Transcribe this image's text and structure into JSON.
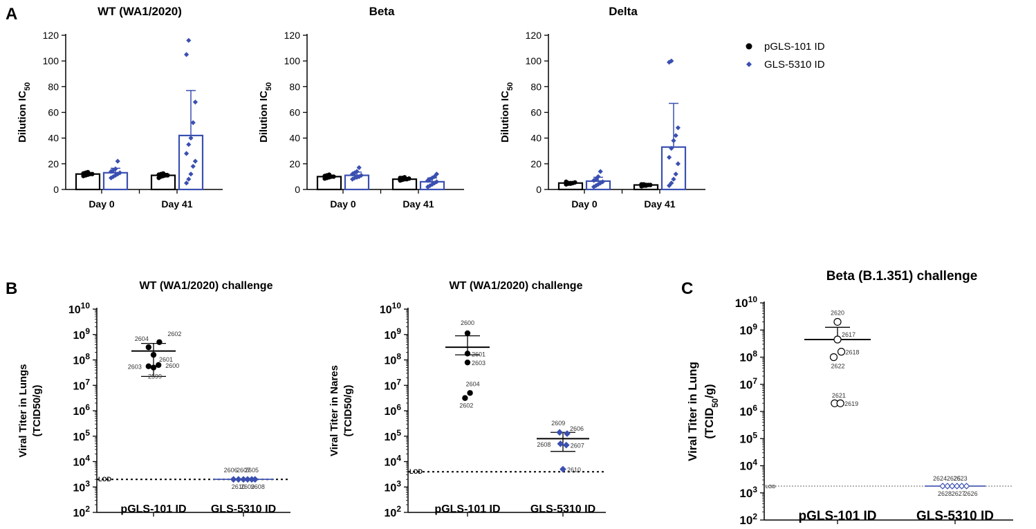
{
  "panel_letters": {
    "a": "A",
    "b": "B",
    "c": "C"
  },
  "legend": {
    "items": [
      {
        "label": "pGLS-101 ID",
        "color": "#000000",
        "marker": "circle"
      },
      {
        "label": "GLS-5310 ID",
        "color": "#3a4fb0",
        "marker": "diamond"
      }
    ]
  },
  "colors": {
    "black": "#000000",
    "blue": "#3a4fb0",
    "gray": "#555555"
  },
  "chart_data": [
    {
      "id": "A1",
      "type": "bar",
      "title": "WT (WA1/2020)",
      "ylabel": "Dilution IC",
      "ylabel_sub": "50",
      "ylim": [
        0,
        120
      ],
      "yticks": [
        0,
        20,
        40,
        60,
        80,
        100,
        120
      ],
      "categories": [
        "Day 0",
        "Day 41"
      ],
      "series": [
        {
          "name": "pGLS-101 ID",
          "values": [
            12,
            11
          ],
          "sd": [
            1,
            1.5
          ],
          "points": [
            [
              10.5,
              11,
              11.5,
              12,
              12,
              12.5,
              13,
              13.5
            ],
            [
              9,
              10,
              10.5,
              11,
              11,
              11.5,
              12,
              12.5
            ]
          ]
        },
        {
          "name": "GLS-5310 ID",
          "values": [
            13,
            42
          ],
          "sd": [
            3.5,
            35
          ],
          "points": [
            [
              9,
              10,
              11,
              12,
              13,
              14,
              15,
              16,
              22
            ],
            [
              5,
              8,
              12,
              18,
              22,
              28,
              35,
              40,
              52,
              68,
              105,
              116
            ]
          ]
        }
      ]
    },
    {
      "id": "A2",
      "type": "bar",
      "title": "Beta",
      "ylabel": "Dilution IC",
      "ylabel_sub": "50",
      "ylim": [
        0,
        120
      ],
      "yticks": [
        0,
        20,
        40,
        60,
        80,
        100,
        120
      ],
      "categories": [
        "Day 0",
        "Day 41"
      ],
      "series": [
        {
          "name": "pGLS-101 ID",
          "values": [
            10,
            8
          ],
          "sd": [
            1,
            1
          ],
          "points": [
            [
              8.5,
              9,
              9.5,
              10,
              10,
              10.5,
              11,
              11.5
            ],
            [
              7,
              7.5,
              8,
              8,
              8.5,
              9,
              9,
              9.5
            ]
          ]
        },
        {
          "name": "GLS-5310 ID",
          "values": [
            11,
            6
          ],
          "sd": [
            2.5,
            3
          ],
          "points": [
            [
              8,
              9,
              9.5,
              10,
              11,
              12,
              13,
              14,
              17
            ],
            [
              2,
              3,
              4,
              5,
              6,
              7,
              8,
              9,
              10,
              12
            ]
          ]
        }
      ]
    },
    {
      "id": "A3",
      "type": "bar",
      "title": "Delta",
      "ylabel": "Dilution IC",
      "ylabel_sub": "50",
      "ylim": [
        0,
        120
      ],
      "yticks": [
        0,
        20,
        40,
        60,
        80,
        100,
        120
      ],
      "categories": [
        "Day 0",
        "Day 41"
      ],
      "series": [
        {
          "name": "pGLS-101 ID",
          "values": [
            5,
            3.5
          ],
          "sd": [
            1,
            0.8
          ],
          "points": [
            [
              4,
              4.5,
              5,
              5,
              5.5,
              6,
              5,
              4.5
            ],
            [
              2.5,
              3,
              3,
              3.5,
              3.5,
              4,
              4,
              3.5
            ]
          ]
        },
        {
          "name": "GLS-5310 ID",
          "values": [
            6.5,
            33
          ],
          "sd": [
            3,
            34
          ],
          "points": [
            [
              2,
              3,
              4,
              5,
              6,
              7,
              8,
              10,
              14
            ],
            [
              3,
              5,
              8,
              12,
              20,
              25,
              32,
              38,
              42,
              48,
              99,
              100
            ]
          ]
        }
      ]
    },
    {
      "id": "B1",
      "type": "scatter",
      "title": "WT  (WA1/2020) challenge",
      "ylabel": "Viral Titer in Lungs",
      "ylabel2": "(TCID50/g)",
      "yscale": "log",
      "ylim_exp": [
        2,
        10
      ],
      "categories": [
        "pGLS-101 ID",
        "GLS-5310 ID"
      ],
      "lod": {
        "label": "LOD",
        "exp": 3.3
      },
      "groups": [
        {
          "name": "pGLS-101 ID",
          "mean_exp": 8.35,
          "err_low_exp": 7.35,
          "err_high_exp": 8.65,
          "points": [
            {
              "label": "2604",
              "exp": 8.5,
              "dx": -0.6,
              "lx": -20,
              "ly": -9
            },
            {
              "label": "2602",
              "exp": 8.7,
              "dx": 0.7,
              "lx": 12,
              "ly": -9
            },
            {
              "label": "2601",
              "exp": 8.2,
              "dx": 0.0,
              "lx": 8,
              "ly": 10
            },
            {
              "label": "2603",
              "exp": 7.75,
              "dx": -0.6,
              "lx": -30,
              "ly": 4
            },
            {
              "label": "2600",
              "exp": 7.8,
              "dx": 0.6,
              "lx": 10,
              "ly": 4
            },
            {
              "label": "2599",
              "exp": 7.7,
              "dx": 0.0,
              "lx": -8,
              "ly": 16
            }
          ]
        },
        {
          "name": "GLS-5310 ID",
          "mean_exp": 3.3,
          "err_low_exp": 3.3,
          "err_high_exp": 3.3,
          "points": [
            {
              "label": "2606",
              "exp": 3.3,
              "dx": -1.2,
              "lx": -14,
              "ly": -10
            },
            {
              "label": "2610",
              "exp": 3.3,
              "dx": -0.6,
              "lx": -10,
              "ly": 14
            },
            {
              "label": "2607",
              "exp": 3.3,
              "dx": 0.0,
              "lx": -10,
              "ly": -10
            },
            {
              "label": "2609",
              "exp": 3.3,
              "dx": 0.5,
              "lx": -10,
              "ly": 14
            },
            {
              "label": "2605",
              "exp": 3.3,
              "dx": 1.0,
              "lx": -10,
              "ly": -10
            },
            {
              "label": "2608",
              "exp": 3.3,
              "dx": 1.4,
              "lx": -6,
              "ly": 14
            }
          ]
        }
      ]
    },
    {
      "id": "B2",
      "type": "scatter",
      "title": "WT  (WA1/2020) challenge",
      "ylabel": "Viral Titer in Nares",
      "ylabel2": "(TCID50/g)",
      "yscale": "log",
      "ylim_exp": [
        2,
        10
      ],
      "categories": [
        "pGLS-101 ID",
        "GLS-5310 ID"
      ],
      "lod": {
        "label": "LOD",
        "exp": 3.6
      },
      "groups": [
        {
          "name": "pGLS-101 ID",
          "mean_exp": 8.5,
          "err_low_exp": 8.2,
          "err_high_exp": 8.95,
          "points": [
            {
              "label": "2600",
              "exp": 9.05,
              "dx": 0.0,
              "lx": -10,
              "ly": -12
            },
            {
              "label": "2601",
              "exp": 8.25,
              "dx": 0.0,
              "lx": 6,
              "ly": 4
            },
            {
              "label": "2603",
              "exp": 7.9,
              "dx": 0.0,
              "lx": 6,
              "ly": 4
            },
            {
              "label": "2604",
              "exp": 6.7,
              "dx": 0.3,
              "lx": -6,
              "ly": -10
            },
            {
              "label": "2602",
              "exp": 6.5,
              "dx": -0.3,
              "lx": -8,
              "ly": 14
            }
          ]
        },
        {
          "name": "GLS-5310 ID",
          "mean_exp": 4.9,
          "err_low_exp": 4.4,
          "err_high_exp": 5.15,
          "points": [
            {
              "label": "2609",
              "exp": 5.15,
              "dx": -0.4,
              "lx": -12,
              "ly": -10
            },
            {
              "label": "2606",
              "exp": 5.1,
              "dx": 0.5,
              "lx": 4,
              "ly": -4
            },
            {
              "label": "2608",
              "exp": 4.7,
              "dx": -0.3,
              "lx": -34,
              "ly": 4
            },
            {
              "label": "2607",
              "exp": 4.65,
              "dx": 0.4,
              "lx": 6,
              "ly": 4
            },
            {
              "label": "2610",
              "exp": 3.7,
              "dx": 0.0,
              "lx": 6,
              "ly": 4
            }
          ]
        }
      ]
    },
    {
      "id": "C",
      "type": "scatter",
      "title": "Beta (B.1.351) challenge",
      "ylabel": "Viral Titer in Lung",
      "ylabel2": "(TCID",
      "ylabel2_sub": "50",
      "ylabel2_end": "/g)",
      "yscale": "log",
      "ylim_exp": [
        2,
        10
      ],
      "categories": [
        "pGLS-101 ID",
        "GLS-5310 ID"
      ],
      "lod": {
        "label": "LOD",
        "exp": 3.25
      },
      "groups": [
        {
          "name": "pGLS-101 ID",
          "mean_exp": 8.65,
          "err_low_exp": 8.65,
          "err_high_exp": 9.1,
          "points": [
            {
              "label": "2620",
              "exp": 9.3,
              "dx": 0.0,
              "lx": -10,
              "ly": -10
            },
            {
              "label": "2617",
              "exp": 8.65,
              "dx": 0.0,
              "lx": 6,
              "ly": -4
            },
            {
              "label": "2618",
              "exp": 8.2,
              "dx": 0.4,
              "lx": 6,
              "ly": 4
            },
            {
              "label": "2622",
              "exp": 8.0,
              "dx": -0.4,
              "lx": -4,
              "ly": 16
            },
            {
              "label": "2621",
              "exp": 6.3,
              "dx": -0.3,
              "lx": -4,
              "ly": -8
            },
            {
              "label": "2619",
              "exp": 6.3,
              "dx": 0.3,
              "lx": 6,
              "ly": 4
            }
          ]
        },
        {
          "name": "GLS-5310 ID",
          "mean_exp": 3.25,
          "err_low_exp": 3.25,
          "err_high_exp": 3.25,
          "points": [
            {
              "label": "2624",
              "exp": 3.25,
              "dx": -1.3,
              "lx": -14,
              "ly": -8
            },
            {
              "label": "2628",
              "exp": 3.25,
              "dx": -0.8,
              "lx": -14,
              "ly": 14
            },
            {
              "label": "2625",
              "exp": 3.25,
              "dx": -0.3,
              "lx": -8,
              "ly": -8
            },
            {
              "label": "2627",
              "exp": 3.25,
              "dx": 0.2,
              "lx": -8,
              "ly": 14
            },
            {
              "label": "2623",
              "exp": 3.25,
              "dx": 0.7,
              "lx": -12,
              "ly": -8
            },
            {
              "label": "2626",
              "exp": 3.25,
              "dx": 1.2,
              "lx": -4,
              "ly": 14
            }
          ]
        }
      ]
    }
  ]
}
